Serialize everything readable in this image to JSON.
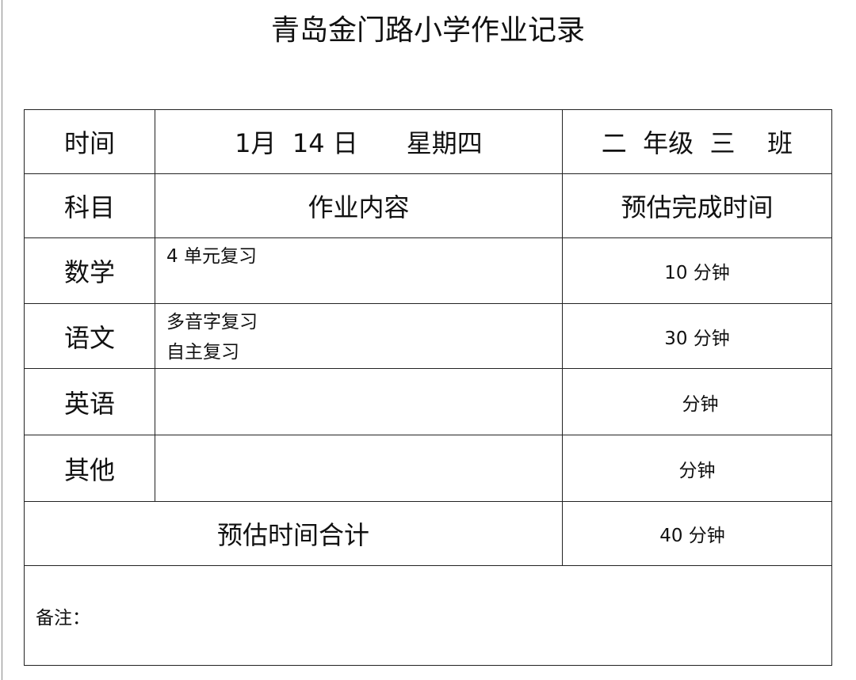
{
  "title": "青岛金门路小学作业记录",
  "header_row": {
    "label": "时间",
    "date": "1月  14 日      星期四",
    "class": "二  年级  三    班"
  },
  "columns": {
    "subject": "科目",
    "content": "作业内容",
    "time": "预估完成时间"
  },
  "rows": [
    {
      "subject": "数学",
      "content": [
        "4 单元复习"
      ],
      "time": "10 分钟"
    },
    {
      "subject": "语文",
      "content": [
        "多音字复习",
        "自主复习"
      ],
      "time": "30 分钟"
    },
    {
      "subject": "英语",
      "content": [],
      "time": "分钟"
    },
    {
      "subject": "其他",
      "content": [],
      "time": "分钟"
    }
  ],
  "total": {
    "label": "预估时间合计",
    "value": "40 分钟"
  },
  "note": {
    "label": "备注："
  }
}
